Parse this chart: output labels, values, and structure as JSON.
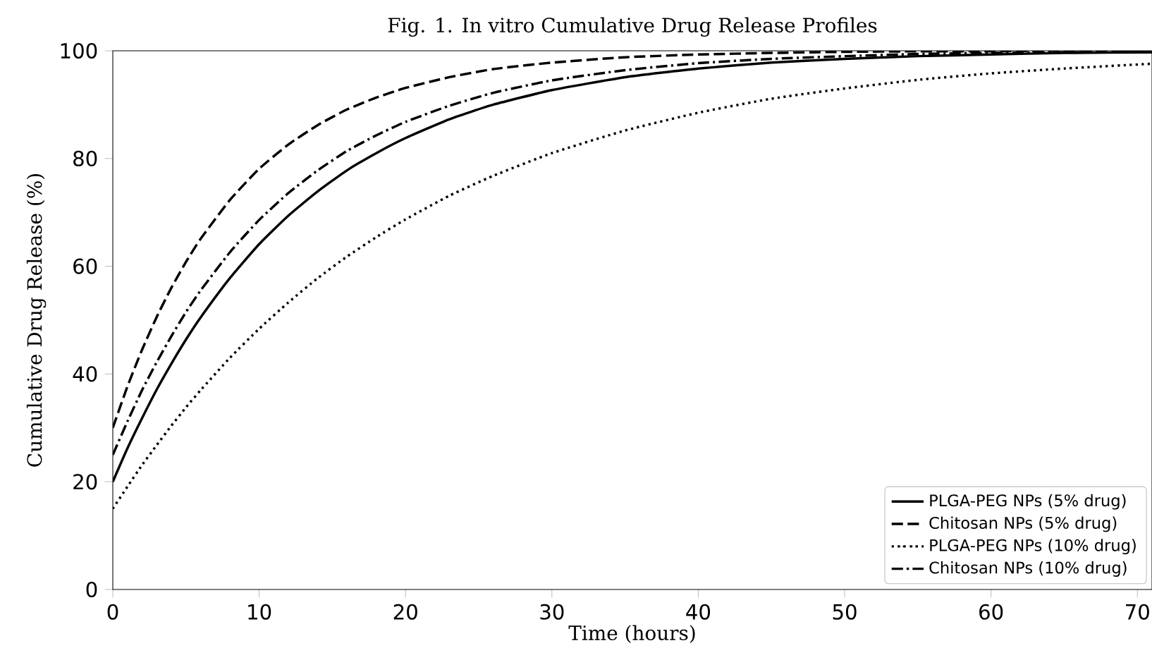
{
  "chart_data": {
    "type": "line",
    "title": "Fig. 1. In vitro Cumulative Drug Release Profiles",
    "xlabel": "Time (hours)",
    "ylabel": "Cumulative Drug Release (%)",
    "x": [
      0,
      1,
      2,
      3,
      4,
      5,
      6,
      8,
      10,
      12,
      14,
      16,
      18,
      20,
      23,
      26,
      30,
      35,
      40,
      45,
      50,
      55,
      60,
      65,
      71
    ],
    "series": [
      {
        "name": "PLGA-PEG NPs (5% drug)",
        "color": "#000000",
        "line_style": "solid",
        "values": [
          20,
          26.2,
          31.8,
          37.1,
          41.9,
          46.4,
          50.5,
          57.8,
          64.1,
          69.4,
          73.9,
          77.8,
          81.0,
          83.8,
          87.3,
          90.0,
          92.7,
          95.1,
          96.7,
          97.8,
          98.5,
          99.0,
          99.3,
          99.6,
          99.7
        ]
      },
      {
        "name": "Chitosan NPs (5% drug)",
        "color": "#000000",
        "line_style": "dashed",
        "values": [
          30,
          37.7,
          44.5,
          50.6,
          56.0,
          60.8,
          65.1,
          72.3,
          78.1,
          82.6,
          86.2,
          89.1,
          91.3,
          93.1,
          95.1,
          96.6,
          97.8,
          98.8,
          99.3,
          99.6,
          99.8,
          99.9,
          99.9,
          100,
          100
        ]
      },
      {
        "name": "PLGA-PEG NPs (10% drug)",
        "color": "#000000",
        "line_style": "dotted",
        "values": [
          15,
          19.1,
          23.1,
          26.8,
          30.4,
          33.8,
          37.0,
          43.0,
          48.4,
          53.3,
          57.8,
          61.8,
          65.4,
          68.7,
          73.1,
          76.8,
          81.0,
          85.2,
          88.5,
          91.1,
          93.0,
          94.6,
          95.8,
          96.7,
          97.6
        ]
      },
      {
        "name": "Chitosan NPs (10% drug)",
        "color": "#000000",
        "line_style": "dashdot",
        "values": [
          25,
          31.2,
          37.0,
          42.2,
          47.0,
          51.5,
          55.5,
          62.6,
          68.6,
          73.6,
          77.8,
          81.4,
          84.3,
          86.8,
          89.8,
          92.2,
          94.5,
          96.4,
          97.7,
          98.5,
          99.0,
          99.4,
          99.6,
          99.7,
          99.8
        ]
      }
    ],
    "xlim": [
      0,
      71
    ],
    "ylim": [
      0,
      100
    ],
    "xticks": [
      0,
      10,
      20,
      30,
      40,
      50,
      60,
      70
    ],
    "yticks": [
      0,
      20,
      40,
      60,
      80,
      100
    ],
    "grid": false,
    "legend": "bottom right"
  }
}
